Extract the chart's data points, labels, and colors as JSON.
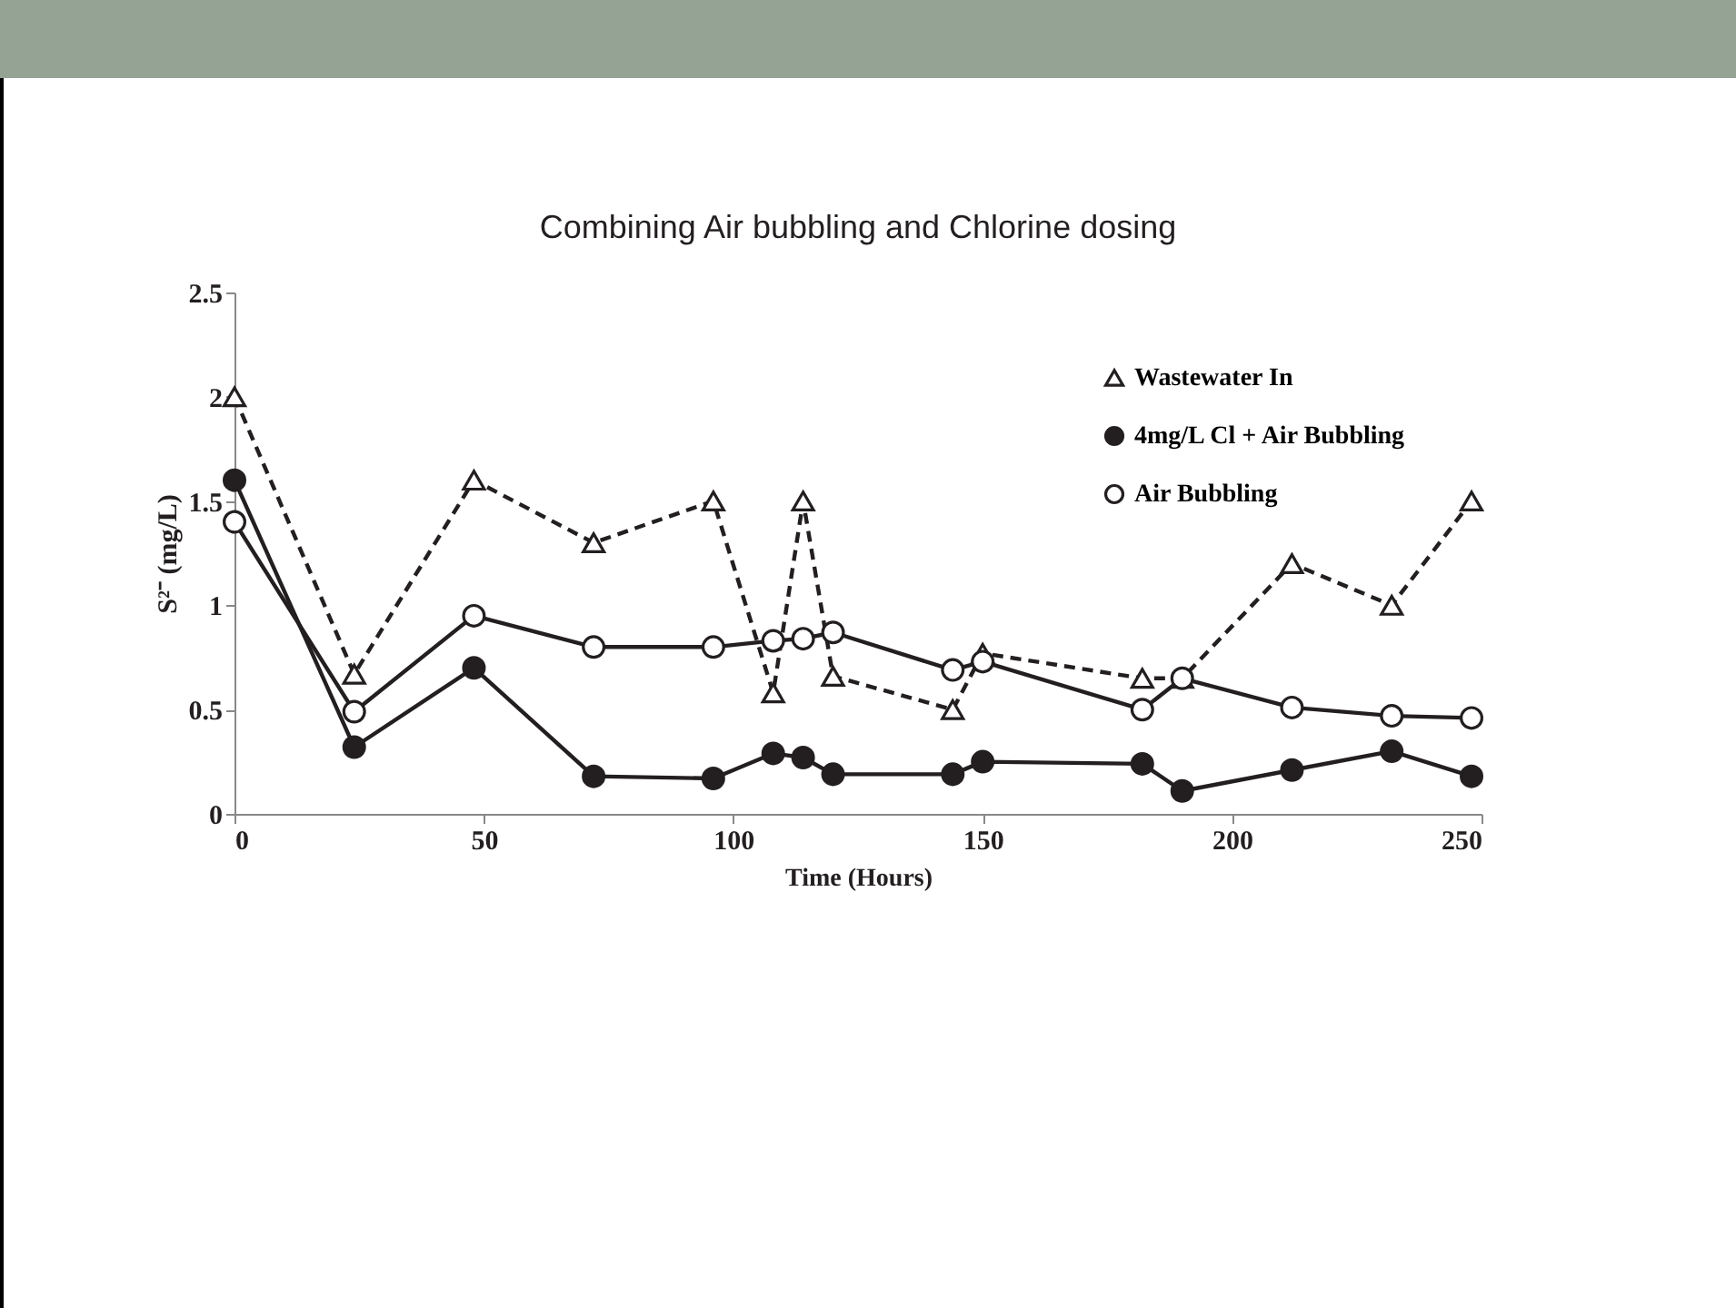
{
  "chart_data": {
    "type": "line",
    "title": "Combining  Air bubbling and Chlorine dosing",
    "xlabel": "Time (Hours)",
    "ylabel": "S²⁻ (mg/L)",
    "x": [
      0,
      24,
      48,
      72,
      96,
      108,
      114,
      120,
      144,
      150,
      182,
      190,
      212,
      232,
      248
    ],
    "series": [
      {
        "name": "Wastewater  In",
        "color": "#231f20",
        "marker": "triangle",
        "line_style": "dashed",
        "values": [
          2.0,
          0.67,
          1.6,
          1.3,
          1.5,
          0.58,
          1.5,
          0.66,
          0.5,
          0.77,
          0.65,
          0.65,
          1.2,
          1.0,
          1.5
        ]
      },
      {
        "name": "4mg/L Cl + Air Bubbling",
        "color": "#231f20",
        "marker": "circle",
        "line_style": "solid",
        "colors": [
          "#231f20",
          "#231f20",
          "#231f20",
          "#231f20",
          "#231f20",
          "#231f20",
          "#231f20",
          "#231f20",
          "#231f20",
          "#231f20",
          "#231f20",
          "#231f20",
          "#231f20",
          "#231f20",
          "#231f20"
        ],
        "values": [
          1.6,
          0.32,
          0.7,
          0.18,
          0.17,
          0.29,
          0.27,
          0.19,
          0.19,
          0.25,
          0.24,
          0.11,
          0.21,
          0.3,
          0.18
        ]
      },
      {
        "name": "Air Bubbling",
        "color": "#231f20",
        "marker": "circle",
        "line_style": "solid",
        "values": [
          1.4,
          0.49,
          0.95,
          0.8,
          0.8,
          0.83,
          0.84,
          0.87,
          0.69,
          0.73,
          0.5,
          0.65,
          0.51,
          0.47,
          0.46
        ]
      }
    ],
    "xlim": [
      0,
      250
    ],
    "xticks": [
      0,
      50,
      100,
      150,
      200,
      250
    ],
    "ylim": [
      0,
      2.5
    ],
    "yticks": [
      {
        "value": 0,
        "label": "0"
      },
      0.5,
      {
        "value": 1,
        "label": "1"
      },
      1.5,
      {
        "value": 2,
        "label": "2"
      },
      2.5
    ],
    "grid": false,
    "legend": "top right"
  }
}
